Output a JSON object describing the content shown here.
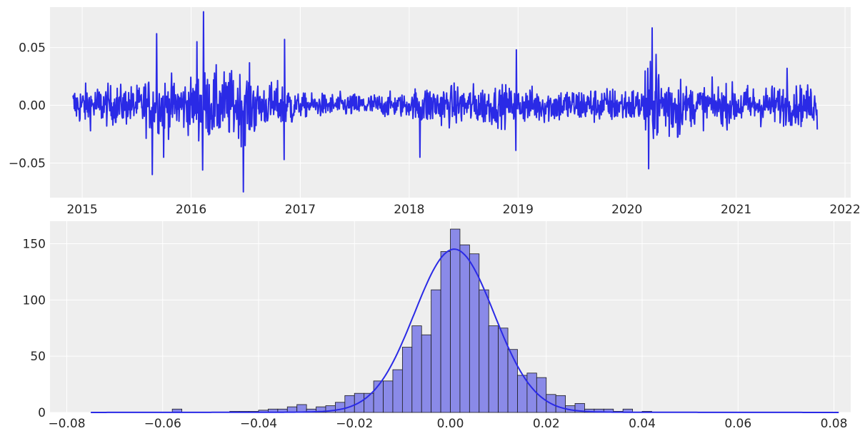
{
  "chart_data": [
    {
      "type": "line",
      "xlabel": "",
      "ylabel": "",
      "x_range": [
        "2014-09-15",
        "2022-01-20"
      ],
      "ylim": [
        -0.08,
        0.085
      ],
      "x_ticks": [
        "2015",
        "2016",
        "2017",
        "2018",
        "2019",
        "2020",
        "2021",
        "2022"
      ],
      "y_ticks": [
        {
          "value": -0.05,
          "label": "−0.05"
        },
        {
          "value": 0.0,
          "label": "0.00"
        },
        {
          "value": 0.05,
          "label": "0.05"
        }
      ],
      "grid": true,
      "color": "#2a2ae6",
      "series_start": "2014-12-01",
      "series_end": "2021-09-30",
      "spikes": [
        {
          "date": "2015-08-24",
          "value": -0.06
        },
        {
          "date": "2015-09-08",
          "value": 0.062
        },
        {
          "date": "2015-10-01",
          "value": -0.045
        },
        {
          "date": "2016-01-20",
          "value": 0.055
        },
        {
          "date": "2016-02-12",
          "value": 0.081
        },
        {
          "date": "2016-02-09",
          "value": -0.056
        },
        {
          "date": "2016-06-24",
          "value": -0.075
        },
        {
          "date": "2016-11-09",
          "value": 0.057
        },
        {
          "date": "2016-11-08",
          "value": -0.047
        },
        {
          "date": "2018-02-06",
          "value": -0.045
        },
        {
          "date": "2018-12-26",
          "value": 0.048
        },
        {
          "date": "2018-12-25",
          "value": -0.039
        },
        {
          "date": "2020-03-13",
          "value": -0.055
        },
        {
          "date": "2020-03-25",
          "value": 0.067
        },
        {
          "date": "2020-04-07",
          "value": 0.044
        },
        {
          "date": "2021-06-21",
          "value": 0.032
        },
        {
          "date": "2021-09-30",
          "value": -0.021
        }
      ]
    },
    {
      "type": "bar",
      "subtype": "histogram_with_kde",
      "xlabel": "",
      "ylabel": "",
      "xlim": [
        -0.0835,
        0.0835
      ],
      "ylim": [
        0,
        170
      ],
      "x_ticks": [
        {
          "value": -0.08,
          "label": "−0.08"
        },
        {
          "value": -0.06,
          "label": "−0.06"
        },
        {
          "value": -0.04,
          "label": "−0.04"
        },
        {
          "value": -0.02,
          "label": "−0.02"
        },
        {
          "value": 0.0,
          "label": "0.00"
        },
        {
          "value": 0.02,
          "label": "0.02"
        },
        {
          "value": 0.04,
          "label": "0.04"
        },
        {
          "value": 0.06,
          "label": "0.06"
        },
        {
          "value": 0.08,
          "label": "0.08"
        }
      ],
      "y_ticks": [
        0,
        50,
        100,
        150
      ],
      "grid": true,
      "bar_color": "#8a8ae8",
      "kde_color": "#2a2ae6",
      "bin_width": 0.002,
      "bins": [
        {
          "x0": -0.058,
          "count": 3
        },
        {
          "x0": -0.046,
          "count": 1
        },
        {
          "x0": -0.044,
          "count": 1
        },
        {
          "x0": -0.042,
          "count": 1
        },
        {
          "x0": -0.04,
          "count": 2
        },
        {
          "x0": -0.038,
          "count": 3
        },
        {
          "x0": -0.036,
          "count": 3
        },
        {
          "x0": -0.034,
          "count": 5
        },
        {
          "x0": -0.032,
          "count": 7
        },
        {
          "x0": -0.03,
          "count": 3
        },
        {
          "x0": -0.028,
          "count": 5
        },
        {
          "x0": -0.026,
          "count": 6
        },
        {
          "x0": -0.024,
          "count": 9
        },
        {
          "x0": -0.022,
          "count": 15
        },
        {
          "x0": -0.02,
          "count": 17
        },
        {
          "x0": -0.018,
          "count": 17
        },
        {
          "x0": -0.016,
          "count": 28
        },
        {
          "x0": -0.014,
          "count": 28
        },
        {
          "x0": -0.012,
          "count": 38
        },
        {
          "x0": -0.01,
          "count": 58
        },
        {
          "x0": -0.008,
          "count": 77
        },
        {
          "x0": -0.006,
          "count": 69
        },
        {
          "x0": -0.004,
          "count": 109
        },
        {
          "x0": -0.002,
          "count": 143
        },
        {
          "x0": 0.0,
          "count": 163
        },
        {
          "x0": 0.002,
          "count": 149
        },
        {
          "x0": 0.004,
          "count": 141
        },
        {
          "x0": 0.006,
          "count": 109
        },
        {
          "x0": 0.008,
          "count": 77
        },
        {
          "x0": 0.01,
          "count": 75
        },
        {
          "x0": 0.012,
          "count": 56
        },
        {
          "x0": 0.014,
          "count": 33
        },
        {
          "x0": 0.016,
          "count": 35
        },
        {
          "x0": 0.018,
          "count": 31
        },
        {
          "x0": 0.02,
          "count": 16
        },
        {
          "x0": 0.022,
          "count": 15
        },
        {
          "x0": 0.024,
          "count": 6
        },
        {
          "x0": 0.026,
          "count": 8
        },
        {
          "x0": 0.028,
          "count": 3
        },
        {
          "x0": 0.03,
          "count": 3
        },
        {
          "x0": 0.032,
          "count": 3
        },
        {
          "x0": 0.034,
          "count": 1
        },
        {
          "x0": 0.036,
          "count": 3
        },
        {
          "x0": 0.04,
          "count": 1
        }
      ],
      "kde": {
        "type": "gaussian",
        "mean": 0.0008,
        "std": 0.0083,
        "peak": 144,
        "range": [
          -0.075,
          0.081
        ]
      }
    }
  ]
}
